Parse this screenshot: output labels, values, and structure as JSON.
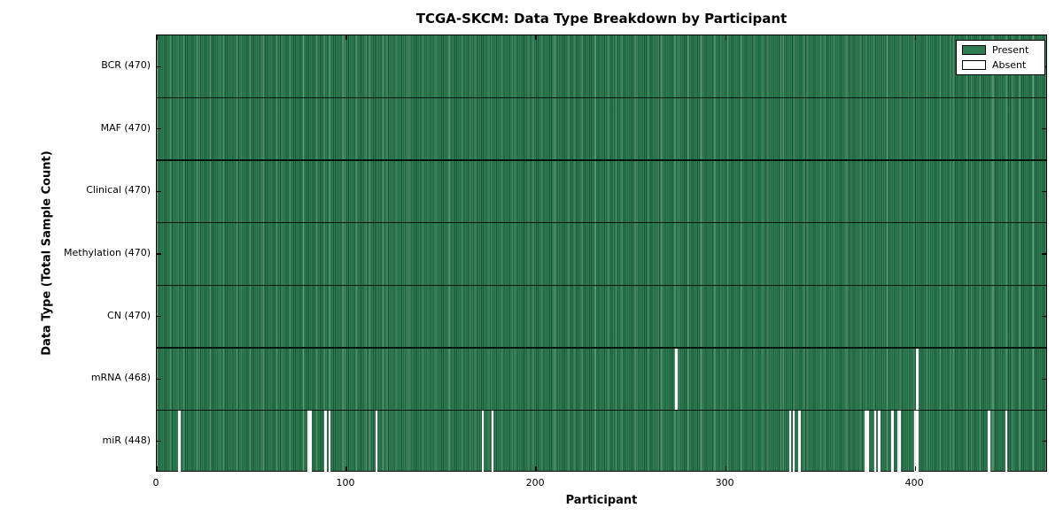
{
  "chart_data": {
    "type": "heatmap",
    "title": "TCGA-SKCM: Data Type Breakdown by Participant",
    "xlabel": "Participant",
    "ylabel": "Data Type (Total Sample Count)",
    "xlim": [
      0,
      470
    ],
    "n_participants": 470,
    "x_ticks": [
      0,
      100,
      200,
      300,
      400
    ],
    "x_tick_labels": [
      "0",
      "100",
      "200",
      "300",
      "400"
    ],
    "grid": "row-separators-only",
    "legend_position": "upper right",
    "legend": [
      {
        "label": "Present",
        "color": "#2f7e53"
      },
      {
        "label": "Absent",
        "color": "#ffffff"
      }
    ],
    "rows": [
      {
        "label": "BCR",
        "count": 470,
        "display": "BCR (470)",
        "absent": []
      },
      {
        "label": "MAF",
        "count": 470,
        "display": "MAF (470)",
        "absent": []
      },
      {
        "label": "Clinical",
        "count": 470,
        "display": "Clinical (470)",
        "absent": []
      },
      {
        "label": "Methylation",
        "count": 470,
        "display": "Methylation (470)",
        "absent": []
      },
      {
        "label": "CN",
        "count": 470,
        "display": "CN (470)",
        "absent": []
      },
      {
        "label": "mRNA",
        "count": 468,
        "display": "mRNA (468)",
        "absent": [
          274,
          401
        ]
      },
      {
        "label": "miR",
        "count": 448,
        "display": "miR (448)",
        "absent": [
          12,
          80,
          81,
          89,
          91,
          116,
          172,
          177,
          334,
          336,
          339,
          374,
          375,
          379,
          381,
          388,
          391,
          392,
          400,
          401,
          439,
          448
        ]
      }
    ],
    "colors": {
      "present_body": "#2f7e53",
      "present_edge": "#1a5636",
      "present_light": "#5ea57e",
      "absent": "#ffffff",
      "separator": "#02160c",
      "axis": "#000000",
      "background": "#ffffff"
    }
  }
}
